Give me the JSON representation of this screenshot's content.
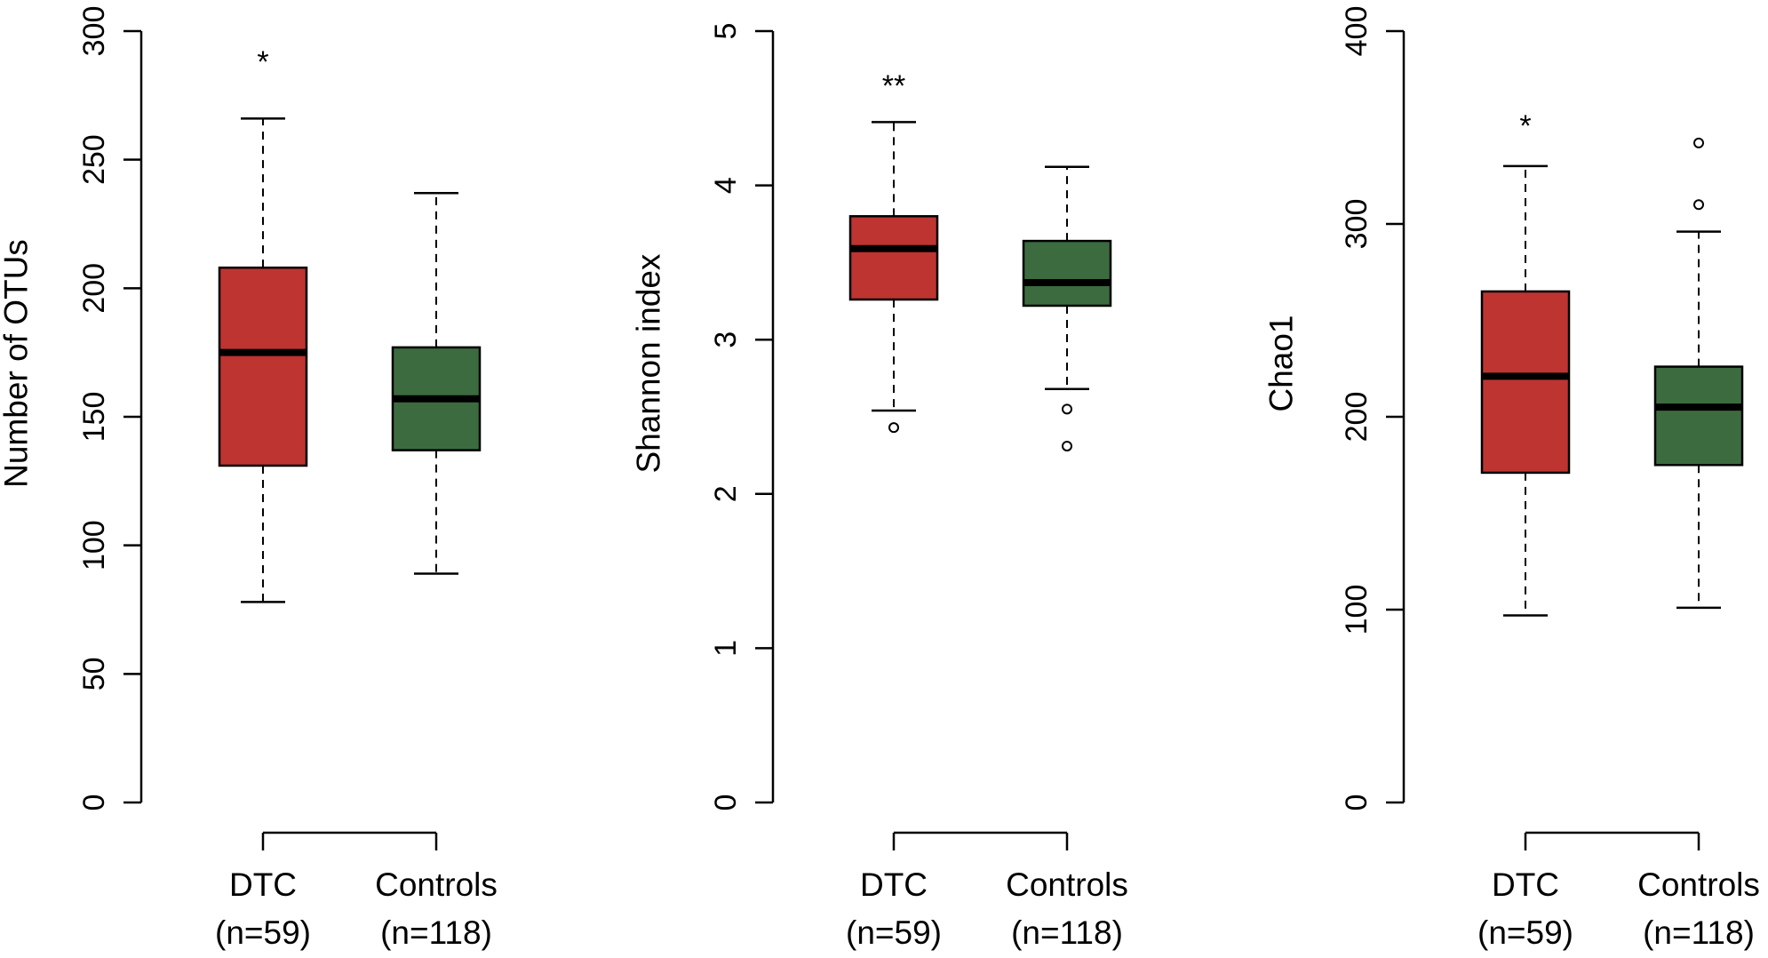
{
  "colors": {
    "dtc": "#BE3431",
    "controls": "#3C6B3F",
    "axis": "#000000",
    "background": "#FFFFFF"
  },
  "chart_data": [
    {
      "type": "boxplot",
      "ylabel": "Number of OTUs",
      "ylim": [
        0,
        300
      ],
      "yticks": [
        0,
        50,
        100,
        150,
        200,
        250,
        300
      ],
      "groups": [
        {
          "name": "DTC",
          "n_label": "(n=59)",
          "color_key": "dtc",
          "whisker_low": 78,
          "q1": 131,
          "median": 175,
          "q3": 208,
          "whisker_high": 266,
          "outliers": [],
          "significance": "*",
          "significance_at": 289
        },
        {
          "name": "Controls",
          "n_label": "(n=118)",
          "color_key": "controls",
          "whisker_low": 89,
          "q1": 137,
          "median": 157,
          "q3": 177,
          "whisker_high": 237,
          "outliers": [],
          "significance": "",
          "significance_at": null
        }
      ]
    },
    {
      "type": "boxplot",
      "ylabel": "Shannon index",
      "ylim": [
        0,
        5
      ],
      "yticks": [
        0,
        1,
        2,
        3,
        4,
        5
      ],
      "groups": [
        {
          "name": "DTC",
          "n_label": "(n=59)",
          "color_key": "dtc",
          "whisker_low": 2.54,
          "q1": 3.26,
          "median": 3.59,
          "q3": 3.8,
          "whisker_high": 4.41,
          "outliers": [
            2.43
          ],
          "significance": "**",
          "significance_at": 4.66
        },
        {
          "name": "Controls",
          "n_label": "(n=118)",
          "color_key": "controls",
          "whisker_low": 2.68,
          "q1": 3.22,
          "median": 3.37,
          "q3": 3.64,
          "whisker_high": 4.12,
          "outliers": [
            2.55,
            2.31
          ],
          "significance": "",
          "significance_at": null
        }
      ]
    },
    {
      "type": "boxplot",
      "ylabel": "Chao1",
      "ylim": [
        0,
        400
      ],
      "yticks": [
        0,
        100,
        200,
        300,
        400
      ],
      "groups": [
        {
          "name": "DTC",
          "n_label": "(n=59)",
          "color_key": "dtc",
          "whisker_low": 97,
          "q1": 171,
          "median": 221,
          "q3": 265,
          "whisker_high": 330,
          "outliers": [],
          "significance": "*",
          "significance_at": 352
        },
        {
          "name": "Controls",
          "n_label": "(n=118)",
          "color_key": "controls",
          "whisker_low": 101,
          "q1": 175,
          "median": 205,
          "q3": 226,
          "whisker_high": 296,
          "outliers": [
            310,
            342
          ],
          "significance": "",
          "significance_at": null
        }
      ]
    }
  ]
}
